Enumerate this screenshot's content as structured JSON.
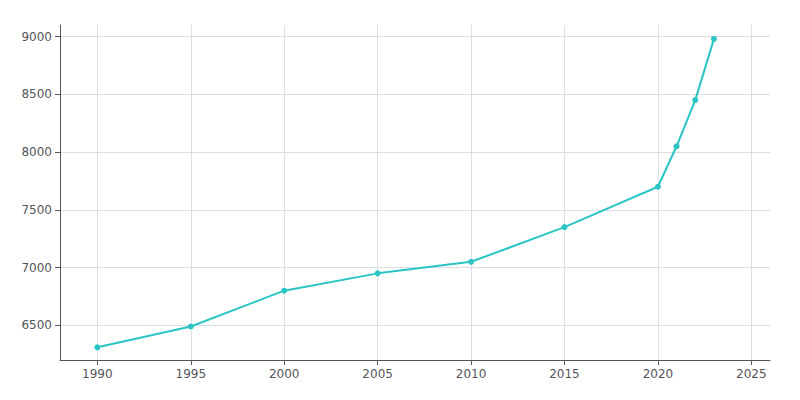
{
  "chart_data": {
    "type": "line",
    "x": [
      1990,
      1995,
      2000,
      2005,
      2010,
      2015,
      2020,
      2021,
      2022,
      2023
    ],
    "values": [
      6310,
      6490,
      6800,
      6950,
      7050,
      7350,
      7700,
      8050,
      8450,
      8980
    ],
    "color": "#2BC5C5",
    "marker": "circle",
    "xlim": [
      1988,
      2026
    ],
    "ylim": [
      6200,
      9100
    ],
    "xticks": [
      1990,
      1995,
      2000,
      2005,
      2010,
      2015,
      2020,
      2025
    ],
    "yticks": [
      6500,
      7000,
      7500,
      8000,
      8500,
      9000
    ],
    "grid": true
  }
}
